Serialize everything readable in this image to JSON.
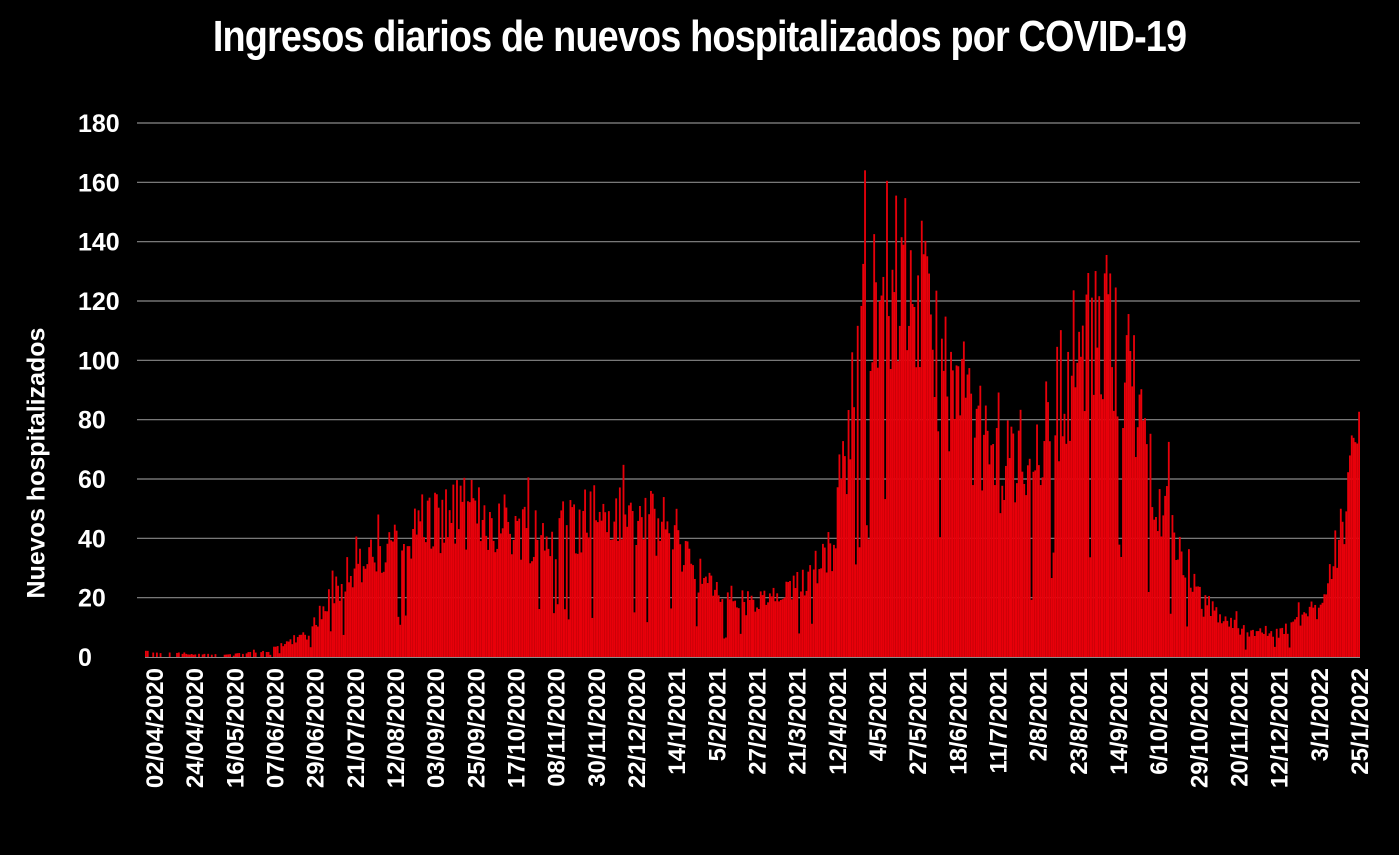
{
  "chart_data": {
    "type": "bar",
    "title": "Ingresos diarios de nuevos hospitalizados por COVID-19",
    "xlabel": "",
    "ylabel": "Nuevos hospitalizados",
    "ylim": [
      0,
      180
    ],
    "yticks": [
      0,
      20,
      40,
      60,
      80,
      100,
      120,
      140,
      160,
      180
    ],
    "grid": true,
    "legend": "none",
    "bar_color": "#e8000a",
    "background": "#000000",
    "x_start": "2020-04-02",
    "x_end": "2022-01-25",
    "xtick_labels": [
      "02/04/2020",
      "24/04/2020",
      "16/05/2020",
      "07/06/2020",
      "29/06/2020",
      "21/07/2020",
      "12/08/2020",
      "03/09/2020",
      "25/09/2020",
      "17/10/2020",
      "08/11/2020",
      "30/11/2020",
      "22/12/2020",
      "14/1/2021",
      "5/2/2021",
      "27/2/2021",
      "21/3/2021",
      "12/4/2021",
      "4/5/2021",
      "27/5/2021",
      "18/6/2021",
      "11/7/2021",
      "2/8/2021",
      "23/8/2021",
      "14/9/2021",
      "6/10/2021",
      "29/10/2021",
      "20/11/2021",
      "12/12/2021",
      "3/1/2022",
      "25/1/2022"
    ],
    "series_profile": {
      "name": "",
      "dates": [
        "2020-04-02",
        "2020-04-24",
        "2020-05-16",
        "2020-06-07",
        "2020-06-29",
        "2020-07-21",
        "2020-08-12",
        "2020-09-03",
        "2020-09-25",
        "2020-10-17",
        "2020-11-08",
        "2020-11-30",
        "2020-12-22",
        "2021-01-14",
        "2021-02-05",
        "2021-02-27",
        "2021-03-21",
        "2021-04-12",
        "2021-05-04",
        "2021-05-27",
        "2021-06-18",
        "2021-07-11",
        "2021-08-02",
        "2021-08-23",
        "2021-09-14",
        "2021-10-06",
        "2021-10-29",
        "2021-11-20",
        "2021-12-12",
        "2022-01-03",
        "2022-01-25"
      ],
      "values": [
        2,
        1,
        1,
        2,
        8,
        30,
        35,
        47,
        50,
        46,
        42,
        50,
        47,
        45,
        23,
        18,
        22,
        40,
        135,
        128,
        90,
        66,
        72,
        105,
        115,
        60,
        20,
        10,
        8,
        18,
        68
      ]
    }
  }
}
